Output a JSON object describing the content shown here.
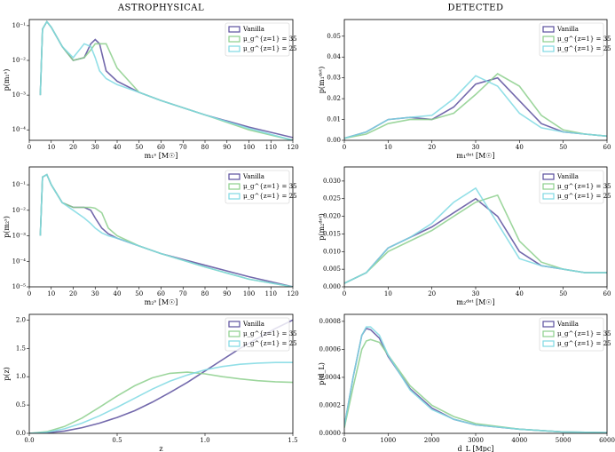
{
  "chart_data": [
    {
      "type": "line",
      "title": "ASTROPHYSICAL",
      "xlabel": "m₁ˢ [M☉]",
      "ylabel": "p(m₁ˢ)",
      "yscale": "log",
      "legend": "upper right",
      "xlim": [
        0,
        120
      ],
      "xticks": [
        0,
        10,
        20,
        30,
        40,
        50,
        60,
        70,
        80,
        90,
        100,
        110,
        120
      ],
      "ylim": [
        5e-05,
        0.15
      ],
      "yticks": [
        {
          "value": 0.0001,
          "label": "10⁻⁴"
        },
        {
          "value": 0.001,
          "label": "10⁻³"
        },
        {
          "value": 0.01,
          "label": "10⁻²"
        },
        {
          "value": 0.1,
          "label": "10⁻¹"
        }
      ],
      "x": [
        5,
        6,
        8,
        10,
        15,
        20,
        25,
        28,
        30,
        32,
        35,
        40,
        50,
        60,
        80,
        100,
        120
      ],
      "series": [
        {
          "name": "Vanilla",
          "color": "#5b4f9e",
          "values": [
            0.001,
            0.08,
            0.13,
            0.09,
            0.025,
            0.01,
            0.012,
            0.03,
            0.04,
            0.03,
            0.005,
            0.0025,
            0.0012,
            0.0007,
            0.00027,
            0.00012,
            6e-05
          ]
        },
        {
          "name": "μ_g^{z=1} = 35",
          "color": "#8ccf8c",
          "values": [
            0.001,
            0.08,
            0.13,
            0.09,
            0.025,
            0.01,
            0.012,
            0.02,
            0.03,
            0.03,
            0.03,
            0.006,
            0.0012,
            0.0007,
            0.00027,
            0.0001,
            5e-05
          ]
        },
        {
          "name": "μ_g^{z=1} = 25",
          "color": "#7fd9e3",
          "values": [
            0.001,
            0.08,
            0.13,
            0.09,
            0.025,
            0.012,
            0.03,
            0.025,
            0.012,
            0.005,
            0.003,
            0.002,
            0.0012,
            0.0007,
            0.00027,
            0.00011,
            5e-05
          ]
        }
      ]
    },
    {
      "type": "line",
      "title": "DETECTED",
      "xlabel": "m₁ᵈᵉᵗ [M☉]",
      "ylabel": "p(m₁ᵈᵉᵗ)",
      "legend": "upper right",
      "xlim": [
        0,
        60
      ],
      "xticks": [
        0,
        10,
        20,
        30,
        40,
        50,
        60
      ],
      "ylim": [
        0,
        0.058
      ],
      "yticks": [
        {
          "value": 0,
          "label": "0.00"
        },
        0.01,
        0.02,
        0.03,
        0.04,
        0.05
      ],
      "x": [
        0,
        5,
        10,
        15,
        20,
        25,
        30,
        35,
        40,
        45,
        50,
        55,
        60
      ],
      "series": [
        {
          "name": "Vanilla",
          "color": "#5b4f9e",
          "values": [
            0.001,
            0.004,
            0.01,
            0.011,
            0.01,
            0.016,
            0.027,
            0.03,
            0.019,
            0.008,
            0.004,
            0.003,
            0.002
          ]
        },
        {
          "name": "μ_g^{z=1} = 35",
          "color": "#8ccf8c",
          "values": [
            0.001,
            0.003,
            0.008,
            0.01,
            0.01,
            0.013,
            0.022,
            0.032,
            0.026,
            0.012,
            0.005,
            0.003,
            0.002
          ]
        },
        {
          "name": "μ_g^{z=1} = 25",
          "color": "#7fd9e3",
          "values": [
            0.001,
            0.004,
            0.01,
            0.011,
            0.012,
            0.02,
            0.031,
            0.026,
            0.013,
            0.006,
            0.004,
            0.003,
            0.002
          ]
        }
      ]
    },
    {
      "type": "line",
      "xlabel": "m₂ˢ [M☉]",
      "ylabel": "p(m₂ˢ)",
      "yscale": "log",
      "legend": "upper right",
      "xlim": [
        0,
        120
      ],
      "xticks": [
        0,
        10,
        20,
        30,
        40,
        50,
        60,
        70,
        80,
        90,
        100,
        110,
        120
      ],
      "ylim": [
        1e-05,
        0.5
      ],
      "yticks": [
        {
          "value": 1e-05,
          "label": "10⁻⁵"
        },
        {
          "value": 0.0001,
          "label": "10⁻⁴"
        },
        {
          "value": 0.001,
          "label": "10⁻³"
        },
        {
          "value": 0.01,
          "label": "10⁻²"
        },
        {
          "value": 0.1,
          "label": "10⁻¹"
        }
      ],
      "x": [
        5,
        6,
        8,
        10,
        15,
        20,
        25,
        28,
        30,
        33,
        36,
        40,
        50,
        60,
        80,
        100,
        120
      ],
      "series": [
        {
          "name": "Vanilla",
          "color": "#5b4f9e",
          "values": [
            0.001,
            0.2,
            0.25,
            0.1,
            0.02,
            0.013,
            0.013,
            0.01,
            0.005,
            0.002,
            0.0012,
            0.0008,
            0.0004,
            0.0002,
            7e-05,
            2.5e-05,
            1e-05
          ]
        },
        {
          "name": "μ_g^{z=1} = 35",
          "color": "#8ccf8c",
          "values": [
            0.001,
            0.2,
            0.25,
            0.1,
            0.02,
            0.013,
            0.013,
            0.013,
            0.012,
            0.008,
            0.002,
            0.001,
            0.0004,
            0.0002,
            6e-05,
            2e-05,
            1e-05
          ]
        },
        {
          "name": "μ_g^{z=1} = 25",
          "color": "#7fd9e3",
          "values": [
            0.001,
            0.2,
            0.25,
            0.1,
            0.02,
            0.01,
            0.005,
            0.003,
            0.002,
            0.0013,
            0.001,
            0.0008,
            0.0004,
            0.0002,
            6e-05,
            2e-05,
            1e-05
          ]
        }
      ]
    },
    {
      "type": "line",
      "xlabel": "m₂ᵈᵉᵗ [M☉]",
      "ylabel": "p(m₂ᵈᵉᵗ)",
      "legend": "upper right",
      "xlim": [
        0,
        60
      ],
      "xticks": [
        0,
        10,
        20,
        30,
        40,
        50,
        60
      ],
      "ylim": [
        0,
        0.034
      ],
      "yticks": [
        {
          "value": 0,
          "label": "0.000"
        },
        0.005,
        {
          "value": 0.01,
          "label": "0.010"
        },
        0.015,
        {
          "value": 0.02,
          "label": "0.020"
        },
        0.025,
        {
          "value": 0.03,
          "label": "0.030"
        }
      ],
      "x": [
        0,
        5,
        10,
        15,
        20,
        25,
        30,
        35,
        40,
        45,
        50,
        55,
        60
      ],
      "series": [
        {
          "name": "Vanilla",
          "color": "#5b4f9e",
          "values": [
            0.001,
            0.004,
            0.011,
            0.014,
            0.017,
            0.021,
            0.025,
            0.02,
            0.01,
            0.006,
            0.005,
            0.004,
            0.004
          ]
        },
        {
          "name": "μ_g^{z=1} = 35",
          "color": "#8ccf8c",
          "values": [
            0.001,
            0.004,
            0.01,
            0.013,
            0.016,
            0.02,
            0.024,
            0.026,
            0.013,
            0.007,
            0.005,
            0.004,
            0.004
          ]
        },
        {
          "name": "μ_g^{z=1} = 25",
          "color": "#7fd9e3",
          "values": [
            0.001,
            0.004,
            0.011,
            0.014,
            0.018,
            0.024,
            0.028,
            0.018,
            0.008,
            0.006,
            0.005,
            0.004,
            0.004
          ]
        }
      ]
    },
    {
      "type": "line",
      "xlabel": "z",
      "ylabel": "p(z)",
      "legend": "upper right",
      "xlim": [
        0,
        1.5
      ],
      "xticks": [
        {
          "value": 0,
          "label": "0.0"
        },
        0.5,
        {
          "value": 1,
          "label": "1.0"
        },
        1.5
      ],
      "ylim": [
        0,
        2.1
      ],
      "yticks": [
        {
          "value": 0,
          "label": "0.0"
        },
        0.5,
        {
          "value": 1,
          "label": "1.0"
        },
        1.5,
        {
          "value": 2,
          "label": "2.0"
        }
      ],
      "x": [
        0,
        0.1,
        0.2,
        0.3,
        0.4,
        0.5,
        0.6,
        0.7,
        0.8,
        0.9,
        1.0,
        1.1,
        1.2,
        1.3,
        1.4,
        1.5
      ],
      "series": [
        {
          "name": "Vanilla",
          "color": "#5b4f9e",
          "values": [
            0,
            0.01,
            0.04,
            0.1,
            0.18,
            0.28,
            0.4,
            0.55,
            0.72,
            0.9,
            1.1,
            1.3,
            1.5,
            1.68,
            1.85,
            2.0
          ]
        },
        {
          "name": "μ_g^{z=1} = 35",
          "color": "#8ccf8c",
          "values": [
            0,
            0.03,
            0.12,
            0.27,
            0.46,
            0.66,
            0.84,
            0.98,
            1.06,
            1.08,
            1.05,
            1.0,
            0.96,
            0.93,
            0.91,
            0.9
          ]
        },
        {
          "name": "μ_g^{z=1} = 25",
          "color": "#7fd9e3",
          "values": [
            0,
            0.02,
            0.08,
            0.18,
            0.31,
            0.46,
            0.62,
            0.78,
            0.92,
            1.03,
            1.12,
            1.18,
            1.22,
            1.24,
            1.25,
            1.25
          ]
        }
      ]
    },
    {
      "type": "line",
      "xlabel": "d_L [Mpc]",
      "ylabel": "p(d_L)",
      "legend": "upper right",
      "xlim": [
        0,
        6000
      ],
      "xticks": [
        0,
        1000,
        2000,
        3000,
        4000,
        5000,
        6000
      ],
      "ylim": [
        0,
        0.00085
      ],
      "yticks": [
        {
          "value": 0,
          "label": "0.0000"
        },
        0.0002,
        0.0004,
        0.0006,
        0.0008
      ],
      "x": [
        0,
        200,
        400,
        500,
        600,
        800,
        1000,
        1500,
        2000,
        2500,
        3000,
        4000,
        5000,
        6000
      ],
      "series": [
        {
          "name": "Vanilla",
          "color": "#5b4f9e",
          "values": [
            5e-05,
            0.0004,
            0.0007,
            0.00075,
            0.00074,
            0.00068,
            0.00055,
            0.00032,
            0.00018,
            0.0001,
            6e-05,
            3e-05,
            1e-05,
            5e-06
          ]
        },
        {
          "name": "μ_g^{z=1} = 35",
          "color": "#8ccf8c",
          "values": [
            4e-05,
            0.00033,
            0.0006,
            0.00066,
            0.00067,
            0.00065,
            0.00056,
            0.00034,
            0.0002,
            0.00012,
            7e-05,
            3e-05,
            1e-05,
            5e-06
          ]
        },
        {
          "name": "μ_g^{z=1} = 25",
          "color": "#7fd9e3",
          "values": [
            5e-05,
            0.0004,
            0.0007,
            0.00076,
            0.00076,
            0.0007,
            0.00056,
            0.00031,
            0.00017,
            0.0001,
            6e-05,
            3e-05,
            1e-05,
            5e-06
          ]
        }
      ]
    }
  ]
}
